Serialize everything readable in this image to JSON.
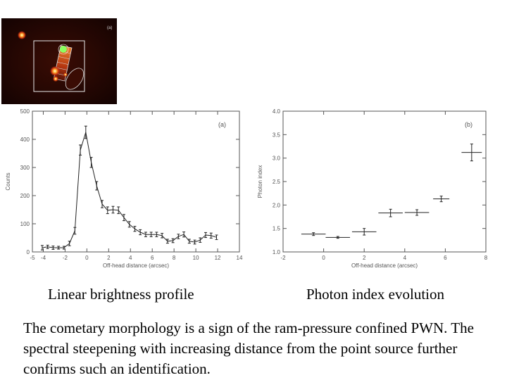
{
  "inset": {
    "panel_label": "(a)"
  },
  "captions": {
    "left": "Linear brightness profile",
    "right": "Photon index evolution",
    "description": "The cometary morphology is a sign of the ram-pressure confined PWN. The spectral steepening with increasing distance from the point source further confirms such an identification."
  },
  "colors": {
    "axis": "#555555",
    "data": "#222222",
    "background": "#ffffff"
  },
  "chart_data": [
    {
      "type": "line",
      "panel_label": "(a)",
      "title": "",
      "xlabel": "Off-head distance (arcsec)",
      "ylabel": "Counts",
      "xlim": [
        -5,
        14
      ],
      "ylim": [
        0,
        500
      ],
      "xticks": [
        -4,
        -2,
        0,
        2,
        4,
        6,
        8,
        10,
        12,
        14
      ],
      "xticks_minor": [
        -5
      ],
      "yticks": [
        0,
        100,
        200,
        300,
        400,
        500
      ],
      "series": [
        {
          "name": "Linear brightness profile",
          "x": [
            -4.1,
            -3.6,
            -3.1,
            -2.6,
            -2.1,
            -1.6,
            -1.1,
            -0.6,
            -0.1,
            0.4,
            0.9,
            1.4,
            1.9,
            2.4,
            2.9,
            3.4,
            3.9,
            4.4,
            4.9,
            5.4,
            5.9,
            6.4,
            6.9,
            7.4,
            7.9,
            8.4,
            8.9,
            9.4,
            9.9,
            10.4,
            10.9,
            11.4,
            11.9
          ],
          "y": [
            15,
            18,
            15,
            15,
            15,
            30,
            75,
            362,
            425,
            318,
            235,
            170,
            148,
            150,
            148,
            122,
            98,
            82,
            70,
            62,
            62,
            62,
            58,
            38,
            40,
            55,
            62,
            38,
            35,
            42,
            60,
            58,
            52
          ],
          "yerr": [
            8,
            6,
            6,
            5,
            5,
            8,
            12,
            18,
            22,
            18,
            15,
            13,
            12,
            12,
            12,
            11,
            10,
            9,
            9,
            8,
            8,
            8,
            8,
            7,
            7,
            8,
            9,
            7,
            7,
            8,
            9,
            9,
            8
          ]
        }
      ]
    },
    {
      "type": "scatter",
      "panel_label": "(b)",
      "title": "",
      "xlabel": "Off-head distance (arcsec)",
      "ylabel": "Photon index",
      "xlim": [
        -2,
        8
      ],
      "ylim": [
        1.0,
        4.0
      ],
      "xticks": [
        -2,
        0,
        2,
        4,
        6,
        8
      ],
      "yticks": [
        1.0,
        1.5,
        2.0,
        2.5,
        3.0,
        3.5,
        4.0
      ],
      "series": [
        {
          "name": "Photon index evolution",
          "x": [
            -0.5,
            0.7,
            2.0,
            3.3,
            4.6,
            5.8,
            7.3
          ],
          "xerr": [
            0.6,
            0.6,
            0.6,
            0.6,
            0.6,
            0.4,
            0.5
          ],
          "y": [
            1.38,
            1.31,
            1.43,
            1.83,
            1.84,
            2.13,
            3.12
          ],
          "yerr": [
            0.03,
            0.02,
            0.07,
            0.08,
            0.06,
            0.06,
            0.18
          ]
        }
      ]
    }
  ]
}
